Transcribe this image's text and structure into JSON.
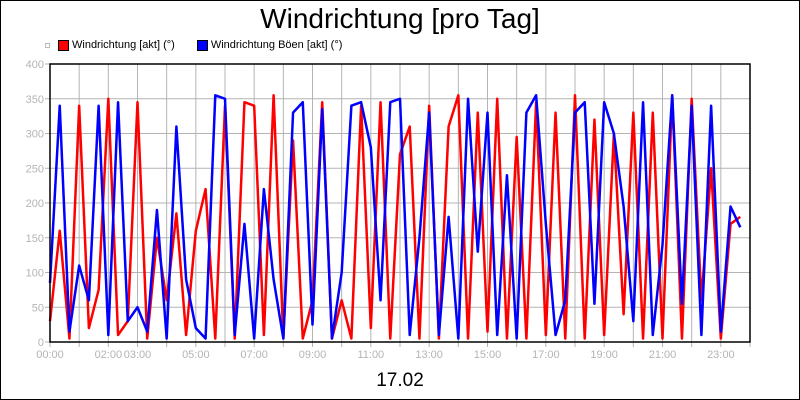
{
  "chart_data": {
    "type": "line",
    "title": "Windrichtung [pro Tag]",
    "xlabel": "17.02",
    "ylabel": "",
    "ylim": [
      0,
      400
    ],
    "yticks": [
      "0",
      "50",
      "100",
      "150",
      "200",
      "250",
      "300",
      "350",
      "400"
    ],
    "xlim_hours": [
      0,
      24
    ],
    "xtick_labels": [
      {
        "hour": 0,
        "label": "00:00"
      },
      {
        "hour": 2,
        "label": "02:00"
      },
      {
        "hour": 3,
        "label": "03:00"
      },
      {
        "hour": 5,
        "label": "05:00"
      },
      {
        "hour": 7,
        "label": "07:00"
      },
      {
        "hour": 9,
        "label": "09:00"
      },
      {
        "hour": 11,
        "label": "11:00"
      },
      {
        "hour": 13,
        "label": "13:00"
      },
      {
        "hour": 15,
        "label": "15:00"
      },
      {
        "hour": 17,
        "label": "17:00"
      },
      {
        "hour": 19,
        "label": "19:00"
      },
      {
        "hour": 21,
        "label": "21:00"
      },
      {
        "hour": 23,
        "label": "23:00"
      }
    ],
    "grid": true,
    "legend_position": "top-left",
    "x": [
      "00:00",
      "00:20",
      "00:40",
      "01:00",
      "01:20",
      "01:40",
      "02:00",
      "02:20",
      "02:40",
      "03:00",
      "03:20",
      "03:40",
      "04:00",
      "04:20",
      "04:40",
      "05:00",
      "05:20",
      "05:40",
      "06:00",
      "06:20",
      "06:40",
      "07:00",
      "07:20",
      "07:40",
      "08:00",
      "08:20",
      "08:40",
      "09:00",
      "09:20",
      "09:40",
      "10:00",
      "10:20",
      "10:40",
      "11:00",
      "11:20",
      "11:40",
      "12:00",
      "12:20",
      "12:40",
      "13:00",
      "13:20",
      "13:40",
      "14:00",
      "14:20",
      "14:40",
      "15:00",
      "15:20",
      "15:40",
      "16:00",
      "16:20",
      "16:40",
      "17:00",
      "17:20",
      "17:40",
      "18:00",
      "18:20",
      "18:40",
      "19:00",
      "19:20",
      "19:40",
      "20:00",
      "20:20",
      "20:40",
      "21:00",
      "21:20",
      "21:40",
      "22:00",
      "22:20",
      "22:40",
      "23:00",
      "23:20",
      "23:40"
    ],
    "series": [
      {
        "name": "Windrichtung [akt] (°)",
        "color": "#ff0000",
        "values": [
          30,
          160,
          5,
          340,
          20,
          75,
          350,
          10,
          30,
          345,
          5,
          150,
          60,
          185,
          10,
          160,
          220,
          5,
          340,
          5,
          345,
          340,
          10,
          355,
          5,
          290,
          5,
          60,
          345,
          5,
          60,
          5,
          340,
          20,
          345,
          5,
          270,
          310,
          5,
          340,
          5,
          310,
          355,
          5,
          330,
          15,
          350,
          5,
          295,
          5,
          345,
          10,
          330,
          5,
          355,
          5,
          320,
          10,
          300,
          40,
          330,
          5,
          330,
          5,
          355,
          5,
          350,
          60,
          250,
          5,
          170,
          180
        ]
      },
      {
        "name": "Windrichtung Böen [akt] (°)",
        "color": "#0000ff",
        "values": [
          85,
          340,
          15,
          110,
          60,
          340,
          10,
          345,
          30,
          50,
          15,
          190,
          5,
          310,
          90,
          20,
          5,
          355,
          350,
          10,
          170,
          5,
          220,
          90,
          5,
          330,
          345,
          25,
          335,
          5,
          100,
          340,
          345,
          280,
          60,
          345,
          350,
          10,
          150,
          330,
          10,
          180,
          5,
          350,
          130,
          330,
          10,
          240,
          5,
          330,
          355,
          170,
          10,
          60,
          330,
          345,
          55,
          345,
          300,
          195,
          30,
          345,
          10,
          140,
          355,
          55,
          340,
          10,
          340,
          15,
          195,
          165
        ]
      }
    ]
  }
}
